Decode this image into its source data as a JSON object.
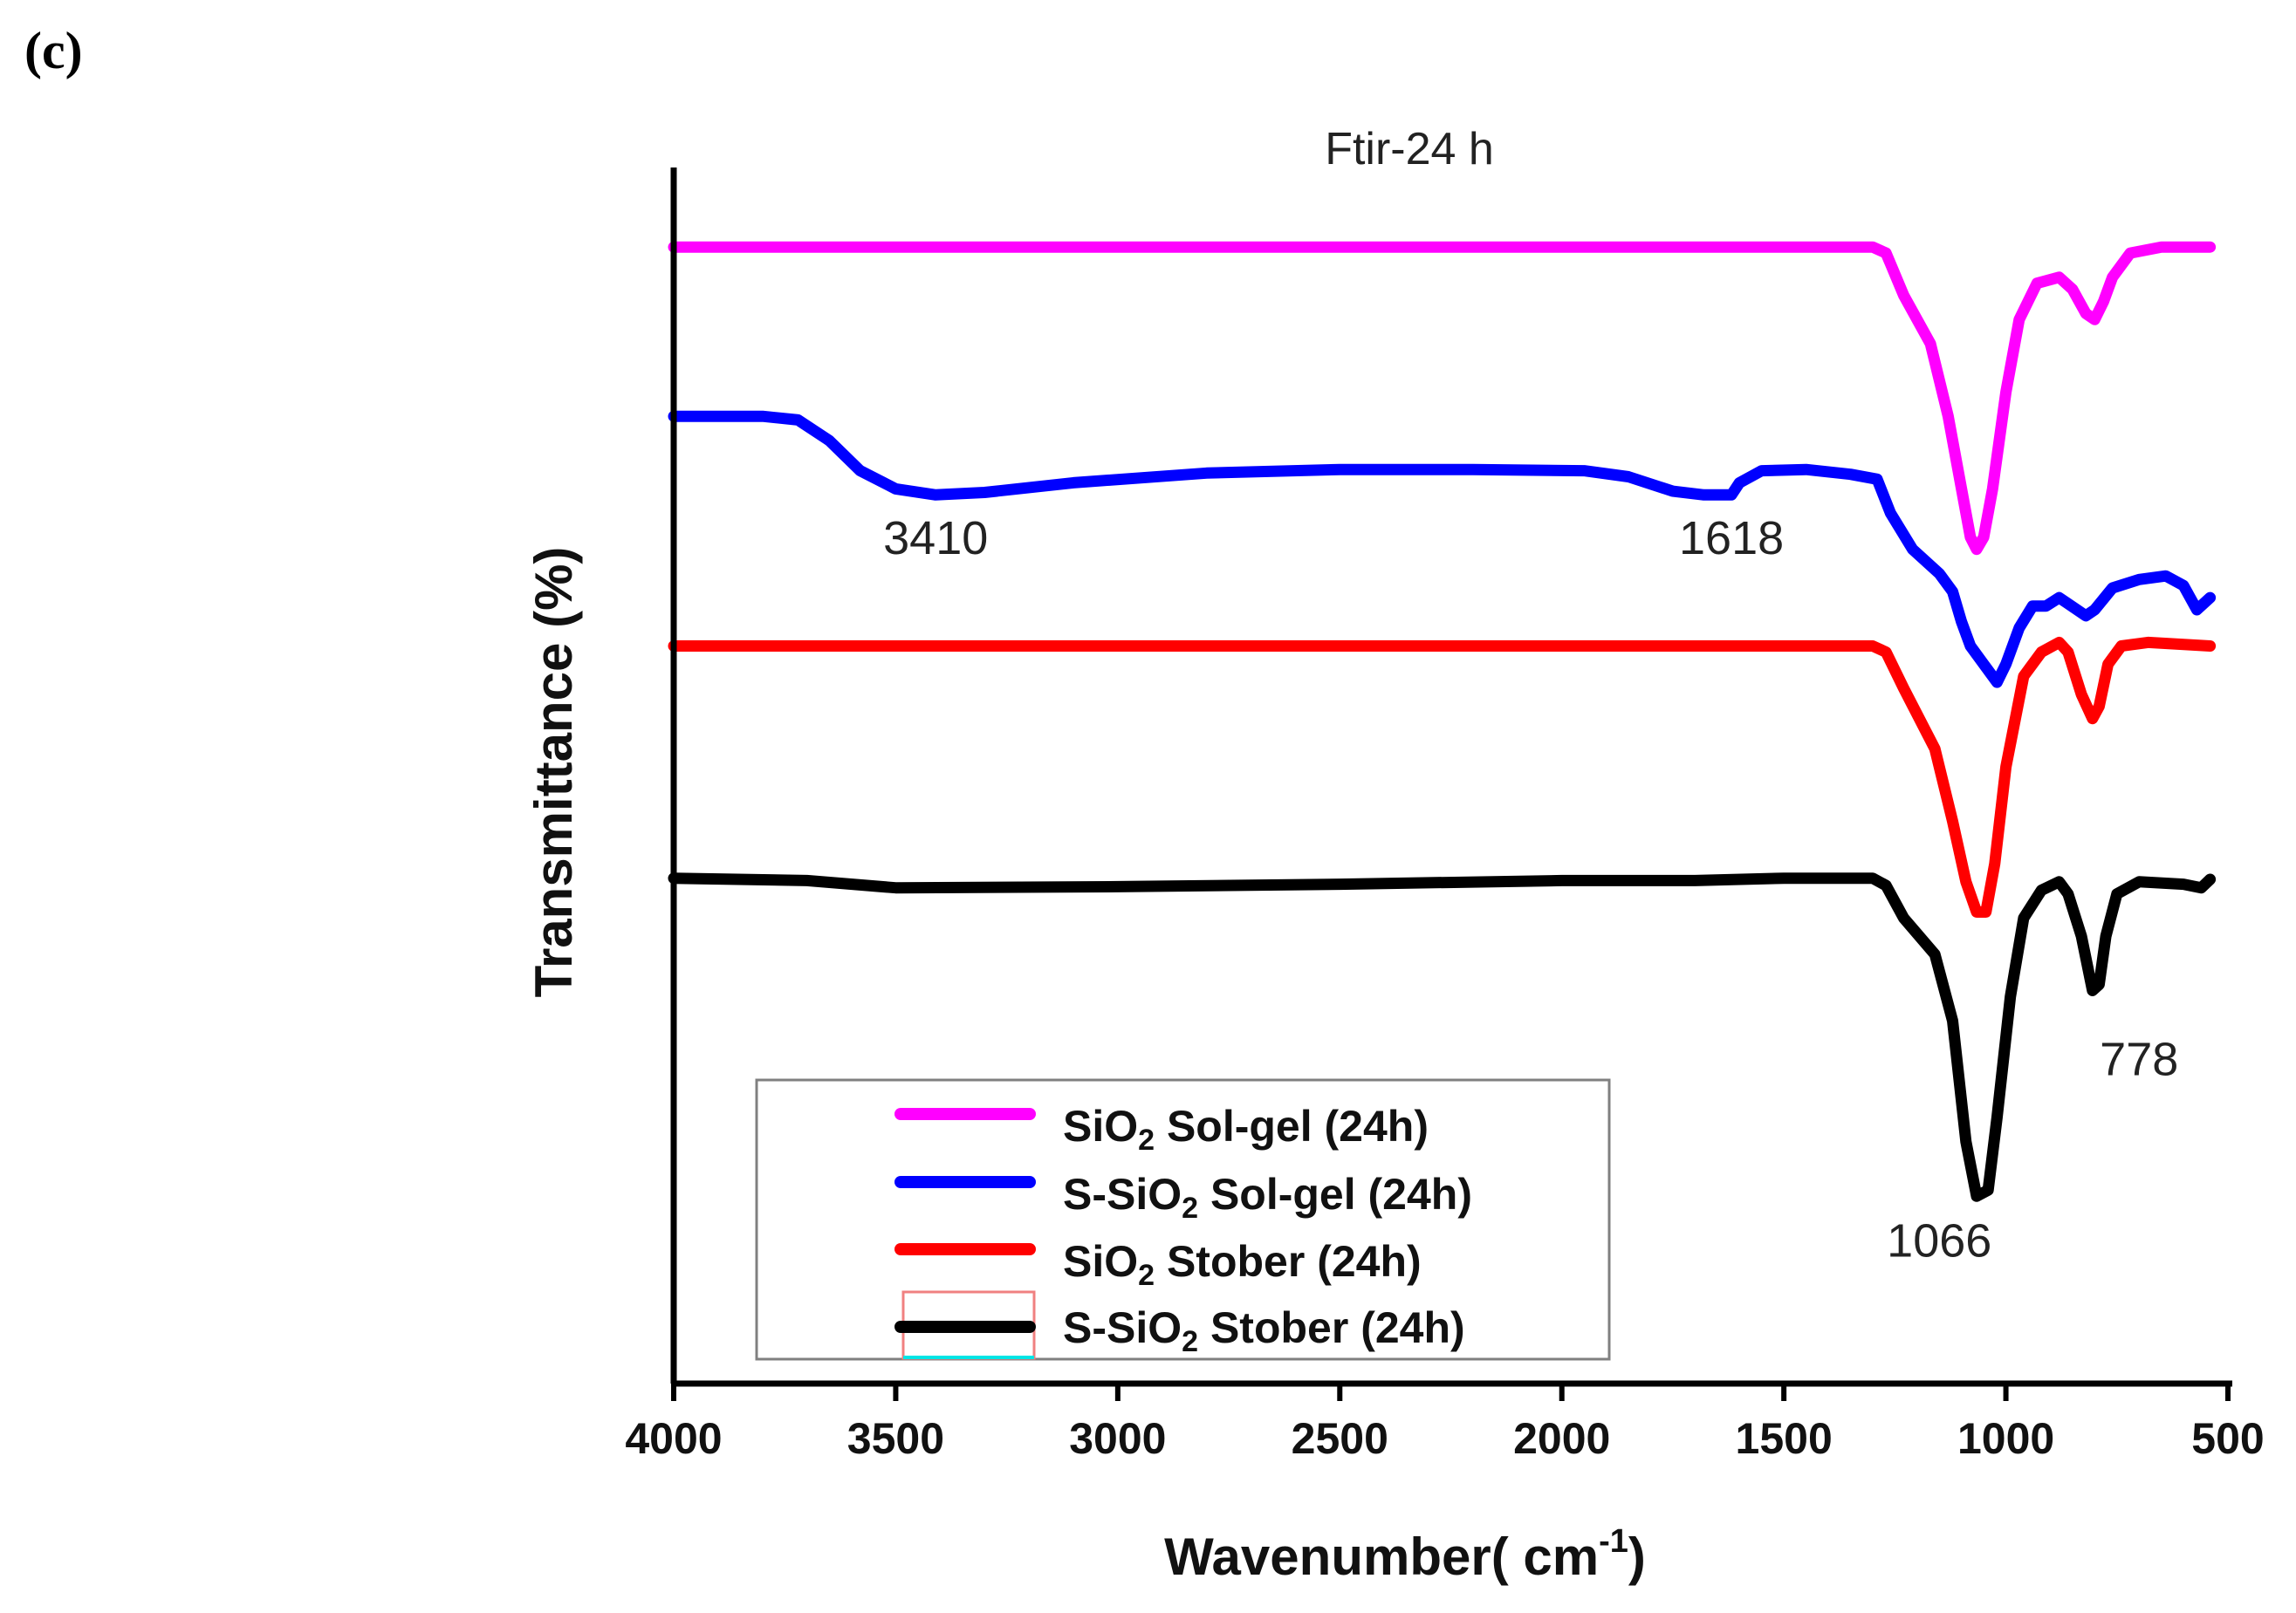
{
  "panel_label": "(c)",
  "chart_data": {
    "type": "line",
    "title": "Ftir-24 h",
    "xlabel": "Wavenumber( cm",
    "xlabel_sup": "-1",
    "xlabel_close": ")",
    "ylabel": "Transmittance (%)",
    "xlim": [
      4000,
      500
    ],
    "x_ticks": [
      "4000",
      "3500",
      "3000",
      "2500",
      "2000",
      "1500",
      "1000",
      "500"
    ],
    "x_tick_values": [
      4000,
      3500,
      3000,
      2500,
      2000,
      1500,
      1000,
      500
    ],
    "ylim": [
      0,
      1
    ],
    "grid": false,
    "legend_position": "bottom-left",
    "series": [
      {
        "name": "SiO2 Sol-gel (24h)",
        "legend_main": "SiO",
        "legend_sub": "2",
        "legend_rest": " Sol-gel (24h)",
        "color": "#ff00ff",
        "points": [
          [
            4000,
            0.94
          ],
          [
            3700,
            0.94
          ],
          [
            3500,
            0.94
          ],
          [
            3000,
            0.94
          ],
          [
            2500,
            0.94
          ],
          [
            2000,
            0.94
          ],
          [
            1500,
            0.94
          ],
          [
            1300,
            0.94
          ],
          [
            1270,
            0.935
          ],
          [
            1230,
            0.9
          ],
          [
            1170,
            0.86
          ],
          [
            1130,
            0.8
          ],
          [
            1100,
            0.74
          ],
          [
            1080,
            0.7
          ],
          [
            1066,
            0.69
          ],
          [
            1050,
            0.7
          ],
          [
            1030,
            0.74
          ],
          [
            1000,
            0.82
          ],
          [
            970,
            0.88
          ],
          [
            930,
            0.91
          ],
          [
            880,
            0.915
          ],
          [
            850,
            0.905
          ],
          [
            820,
            0.885
          ],
          [
            800,
            0.88
          ],
          [
            780,
            0.895
          ],
          [
            760,
            0.915
          ],
          [
            720,
            0.935
          ],
          [
            650,
            0.94
          ],
          [
            540,
            0.94
          ]
        ]
      },
      {
        "name": "S-SiO2 Sol-gel (24h)",
        "legend_main": "S-SiO",
        "legend_sub": "2",
        "legend_rest": " Sol-gel (24h)",
        "color": "#0000ff",
        "points": [
          [
            4000,
            0.8
          ],
          [
            3800,
            0.8
          ],
          [
            3720,
            0.797
          ],
          [
            3650,
            0.78
          ],
          [
            3580,
            0.755
          ],
          [
            3500,
            0.74
          ],
          [
            3410,
            0.735
          ],
          [
            3300,
            0.737
          ],
          [
            3100,
            0.745
          ],
          [
            2800,
            0.753
          ],
          [
            2500,
            0.756
          ],
          [
            2200,
            0.756
          ],
          [
            1950,
            0.755
          ],
          [
            1850,
            0.75
          ],
          [
            1750,
            0.738
          ],
          [
            1680,
            0.735
          ],
          [
            1618,
            0.735
          ],
          [
            1600,
            0.745
          ],
          [
            1550,
            0.755
          ],
          [
            1450,
            0.756
          ],
          [
            1350,
            0.752
          ],
          [
            1290,
            0.748
          ],
          [
            1260,
            0.72
          ],
          [
            1210,
            0.69
          ],
          [
            1150,
            0.67
          ],
          [
            1120,
            0.655
          ],
          [
            1100,
            0.63
          ],
          [
            1080,
            0.61
          ],
          [
            1050,
            0.595
          ],
          [
            1020,
            0.58
          ],
          [
            1000,
            0.595
          ],
          [
            970,
            0.625
          ],
          [
            940,
            0.643
          ],
          [
            910,
            0.643
          ],
          [
            880,
            0.65
          ],
          [
            860,
            0.645
          ],
          [
            820,
            0.635
          ],
          [
            800,
            0.64
          ],
          [
            760,
            0.658
          ],
          [
            700,
            0.665
          ],
          [
            640,
            0.668
          ],
          [
            600,
            0.66
          ],
          [
            570,
            0.64
          ],
          [
            540,
            0.65
          ]
        ]
      },
      {
        "name": "SiO2 Stober (24h)",
        "legend_main": "SiO",
        "legend_sub": "2",
        "legend_rest": " Stober (24h)",
        "color": "#ff0000",
        "points": [
          [
            4000,
            0.61
          ],
          [
            3500,
            0.61
          ],
          [
            3000,
            0.61
          ],
          [
            2500,
            0.61
          ],
          [
            2000,
            0.61
          ],
          [
            1500,
            0.61
          ],
          [
            1300,
            0.61
          ],
          [
            1270,
            0.605
          ],
          [
            1230,
            0.575
          ],
          [
            1160,
            0.525
          ],
          [
            1120,
            0.465
          ],
          [
            1090,
            0.415
          ],
          [
            1066,
            0.39
          ],
          [
            1045,
            0.39
          ],
          [
            1025,
            0.43
          ],
          [
            1000,
            0.51
          ],
          [
            960,
            0.585
          ],
          [
            920,
            0.605
          ],
          [
            880,
            0.613
          ],
          [
            860,
            0.605
          ],
          [
            830,
            0.57
          ],
          [
            805,
            0.55
          ],
          [
            790,
            0.56
          ],
          [
            770,
            0.595
          ],
          [
            740,
            0.61
          ],
          [
            680,
            0.613
          ],
          [
            540,
            0.61
          ]
        ]
      },
      {
        "name": "S-SiO2 Stober (24h)",
        "legend_main": "S-SiO",
        "legend_sub": "2",
        "legend_rest": " Stober (24h)",
        "color": "#000000",
        "points": [
          [
            4000,
            0.418
          ],
          [
            3700,
            0.416
          ],
          [
            3500,
            0.41
          ],
          [
            3000,
            0.411
          ],
          [
            2500,
            0.413
          ],
          [
            2000,
            0.416
          ],
          [
            1700,
            0.416
          ],
          [
            1500,
            0.418
          ],
          [
            1300,
            0.418
          ],
          [
            1270,
            0.412
          ],
          [
            1230,
            0.385
          ],
          [
            1160,
            0.355
          ],
          [
            1120,
            0.3
          ],
          [
            1090,
            0.2
          ],
          [
            1066,
            0.155
          ],
          [
            1040,
            0.16
          ],
          [
            1020,
            0.22
          ],
          [
            990,
            0.32
          ],
          [
            960,
            0.385
          ],
          [
            920,
            0.408
          ],
          [
            880,
            0.415
          ],
          [
            860,
            0.405
          ],
          [
            830,
            0.37
          ],
          [
            805,
            0.325
          ],
          [
            790,
            0.33
          ],
          [
            775,
            0.37
          ],
          [
            750,
            0.405
          ],
          [
            700,
            0.415
          ],
          [
            600,
            0.413
          ],
          [
            560,
            0.41
          ],
          [
            540,
            0.417
          ]
        ]
      }
    ],
    "annotations": [
      {
        "text": "3410",
        "x": 3410,
        "y": 0.686
      },
      {
        "text": "1618",
        "x": 1618,
        "y": 0.686
      },
      {
        "text": "1066",
        "x": 1150,
        "y": 0.105
      },
      {
        "text": "778",
        "x": 700,
        "y": 0.255
      }
    ]
  }
}
